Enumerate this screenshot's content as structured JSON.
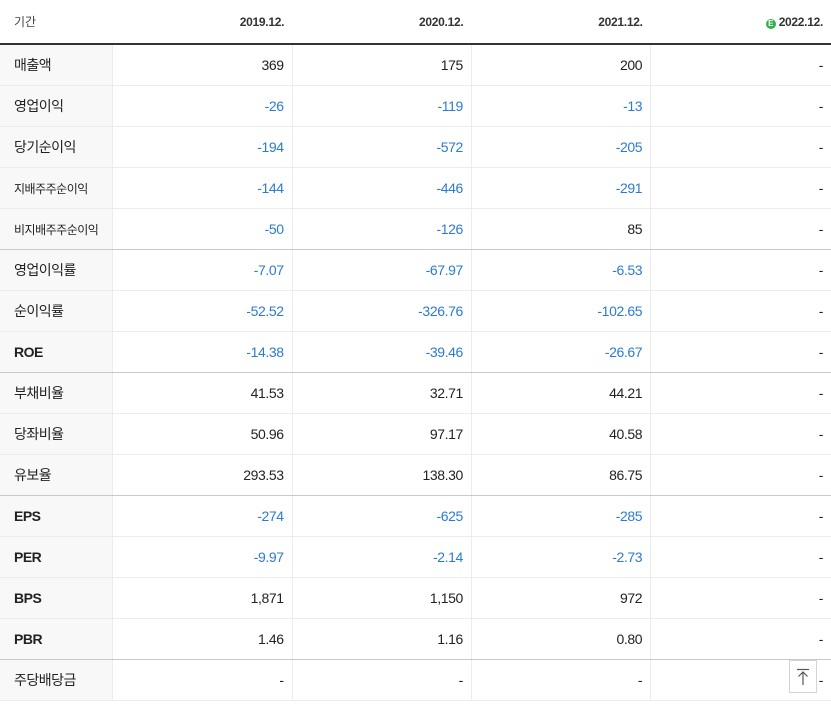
{
  "header": {
    "label": "기간",
    "periods": [
      "2019.12.",
      "2020.12.",
      "2021.12.",
      "2022.12."
    ],
    "estimate_badge": "E",
    "badge_color": "#2fb14d"
  },
  "colors": {
    "negative": "#2b7bd0",
    "text": "#222222"
  },
  "rows": [
    {
      "label": "매출액",
      "values": [
        "369",
        "175",
        "200",
        "-"
      ]
    },
    {
      "label": "영업이익",
      "values": [
        "-26",
        "-119",
        "-13",
        "-"
      ]
    },
    {
      "label": "당기순이익",
      "values": [
        "-194",
        "-572",
        "-205",
        "-"
      ]
    },
    {
      "label": "지배주주순이익",
      "values": [
        "-144",
        "-446",
        "-291",
        "-"
      ]
    },
    {
      "label": "비지배주주순이익",
      "values": [
        "-50",
        "-126",
        "85",
        "-"
      ]
    },
    {
      "label": "영업이익률",
      "values": [
        "-7.07",
        "-67.97",
        "-6.53",
        "-"
      ]
    },
    {
      "label": "순이익률",
      "values": [
        "-52.52",
        "-326.76",
        "-102.65",
        "-"
      ]
    },
    {
      "label": "ROE",
      "values": [
        "-14.38",
        "-39.46",
        "-26.67",
        "-"
      ]
    },
    {
      "label": "부채비율",
      "values": [
        "41.53",
        "32.71",
        "44.21",
        "-"
      ]
    },
    {
      "label": "당좌비율",
      "values": [
        "50.96",
        "97.17",
        "40.58",
        "-"
      ]
    },
    {
      "label": "유보율",
      "values": [
        "293.53",
        "138.30",
        "86.75",
        "-"
      ]
    },
    {
      "label": "EPS",
      "values": [
        "-274",
        "-625",
        "-285",
        "-"
      ]
    },
    {
      "label": "PER",
      "values": [
        "-9.97",
        "-2.14",
        "-2.73",
        "-"
      ]
    },
    {
      "label": "BPS",
      "values": [
        "1,871",
        "1,150",
        "972",
        "-"
      ]
    },
    {
      "label": "PBR",
      "values": [
        "1.46",
        "1.16",
        "0.80",
        "-"
      ]
    },
    {
      "label": "주당배당금",
      "values": [
        "-",
        "-",
        "-",
        "-"
      ]
    }
  ],
  "scroll_top_icon": "arrow-up-to-top-icon"
}
